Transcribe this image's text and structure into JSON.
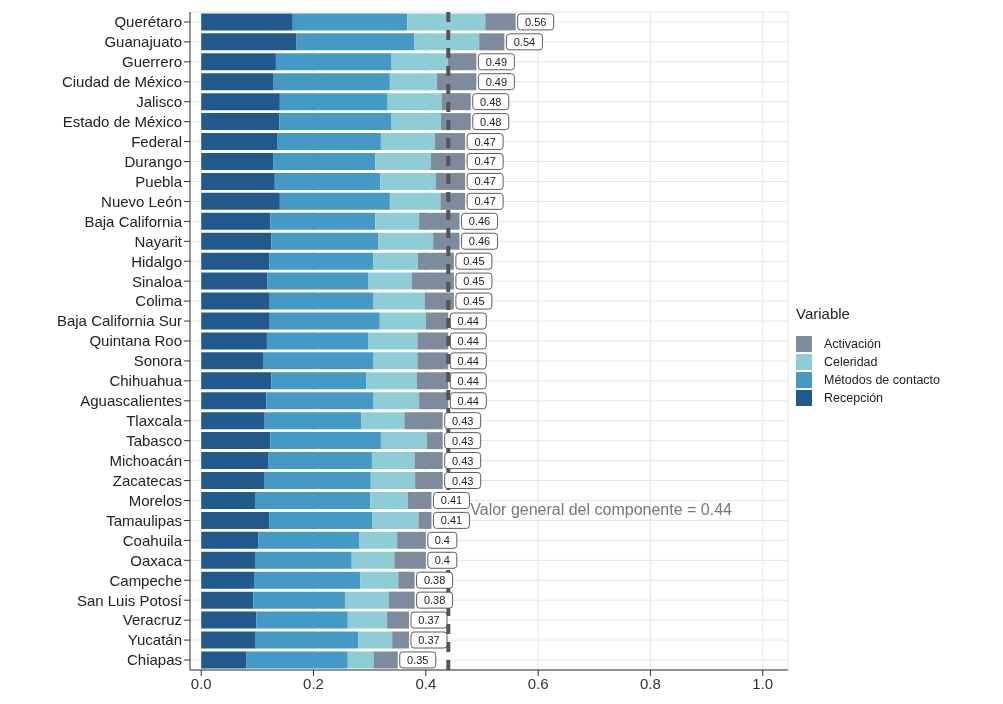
{
  "chart_data": {
    "type": "bar",
    "orientation": "horizontal",
    "stacked": true,
    "categories": [
      "Querétaro",
      "Guanajuato",
      "Guerrero",
      "Ciudad de México",
      "Jalisco",
      "Estado de México",
      "Federal",
      "Durango",
      "Puebla",
      "Nuevo León",
      "Baja California",
      "Nayarit",
      "Hidalgo",
      "Sinaloa",
      "Colima",
      "Baja California Sur",
      "Quintana Roo",
      "Sonora",
      "Chihuahua",
      "Aguascalientes",
      "Tlaxcala",
      "Tabasco",
      "Michoacán",
      "Zacatecas",
      "Morelos",
      "Tamaulipas",
      "Coahuila",
      "Oaxaca",
      "Campeche",
      "San Luis Potosí",
      "Veracruz",
      "Yucatán",
      "Chiapas"
    ],
    "series": [
      {
        "name": "Recepción",
        "color": "#23598a",
        "values": [
          0.163,
          0.169,
          0.133,
          0.129,
          0.14,
          0.139,
          0.135,
          0.128,
          0.131,
          0.14,
          0.123,
          0.125,
          0.121,
          0.118,
          0.122,
          0.122,
          0.117,
          0.11,
          0.125,
          0.116,
          0.113,
          0.123,
          0.119,
          0.113,
          0.097,
          0.121,
          0.102,
          0.097,
          0.094,
          0.093,
          0.098,
          0.097,
          0.08
        ]
      },
      {
        "name": "Métodos de contacto",
        "color": "#4499c5",
        "values": [
          0.204,
          0.21,
          0.206,
          0.207,
          0.192,
          0.2,
          0.185,
          0.182,
          0.188,
          0.196,
          0.187,
          0.19,
          0.185,
          0.18,
          0.185,
          0.196,
          0.181,
          0.197,
          0.169,
          0.191,
          0.172,
          0.197,
          0.185,
          0.189,
          0.204,
          0.184,
          0.179,
          0.171,
          0.189,
          0.163,
          0.163,
          0.183,
          0.181
        ]
      },
      {
        "name": "Celeridad",
        "color": "#8ecdd6",
        "values": [
          0.139,
          0.116,
          0.1,
          0.084,
          0.096,
          0.088,
          0.096,
          0.099,
          0.099,
          0.09,
          0.078,
          0.098,
          0.08,
          0.077,
          0.091,
          0.082,
          0.087,
          0.078,
          0.09,
          0.081,
          0.077,
          0.082,
          0.076,
          0.079,
          0.067,
          0.082,
          0.068,
          0.076,
          0.068,
          0.078,
          0.07,
          0.06,
          0.046
        ]
      },
      {
        "name": "Activación",
        "color": "#7d8b9c",
        "values": [
          0.054,
          0.045,
          0.051,
          0.07,
          0.052,
          0.053,
          0.054,
          0.061,
          0.052,
          0.044,
          0.072,
          0.047,
          0.064,
          0.075,
          0.052,
          0.04,
          0.055,
          0.055,
          0.056,
          0.052,
          0.068,
          0.028,
          0.05,
          0.049,
          0.042,
          0.023,
          0.051,
          0.056,
          0.029,
          0.046,
          0.039,
          0.03,
          0.043
        ]
      }
    ],
    "totals": [
      "0.56",
      "0.54",
      "0.49",
      "0.49",
      "0.48",
      "0.48",
      "0.47",
      "0.47",
      "0.47",
      "0.47",
      "0.46",
      "0.46",
      "0.45",
      "0.45",
      "0.45",
      "0.44",
      "0.44",
      "0.44",
      "0.44",
      "0.44",
      "0.43",
      "0.43",
      "0.43",
      "0.43",
      "0.41",
      "0.41",
      "0.4",
      "0.4",
      "0.38",
      "0.38",
      "0.37",
      "0.37",
      "0.35"
    ],
    "xlim": [
      -0.02,
      1.045
    ],
    "xticks": [
      {
        "value": 0,
        "label": "0.0"
      },
      {
        "value": 0.2,
        "label": "0.2"
      },
      {
        "value": 0.4,
        "label": "0.4"
      },
      {
        "value": 0.6,
        "label": "0.6"
      },
      {
        "value": 0.8,
        "label": "0.8"
      },
      {
        "value": 1,
        "label": "1.0"
      }
    ],
    "ref_lines": [
      {
        "axis": "x",
        "value": 0.44,
        "label": "Valor general del componente = 0.44",
        "color": "#555555",
        "line_style": "dashed"
      }
    ],
    "legend_title": "Variable",
    "legend": "right",
    "grid": true
  }
}
